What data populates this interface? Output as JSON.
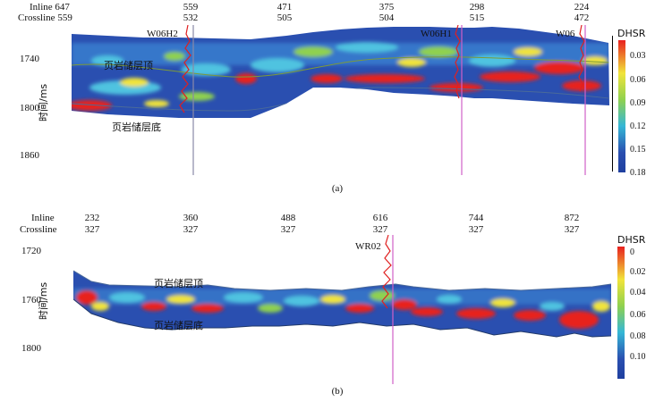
{
  "panel_a": {
    "caption": "(a)",
    "inline_label": "Inline",
    "crossline_label": "Crossline",
    "inline_first": "647",
    "crossline_first": "559",
    "inline_ticks": [
      "559",
      "471",
      "375",
      "298",
      "224"
    ],
    "crossline_ticks": [
      "532",
      "505",
      "504",
      "515",
      "472"
    ],
    "y_title": "时间/ms",
    "y_ticks": [
      "1740",
      "1800",
      "1860"
    ],
    "wells": [
      "W06H2",
      "W06H1",
      "W06"
    ],
    "horizon_top": "页岩储层顶",
    "horizon_bottom": "页岩储层底",
    "colorbar_title": "DHSR",
    "colorbar_ticks": [
      "0.03",
      "0.06",
      "0.09",
      "0.12",
      "0.15",
      "0.18"
    ]
  },
  "panel_b": {
    "caption": "(b)",
    "inline_label": "Inline",
    "crossline_label": "Crossline",
    "inline_ticks": [
      "232",
      "360",
      "488",
      "616",
      "744",
      "872"
    ],
    "crossline_ticks": [
      "327",
      "327",
      "327",
      "327",
      "327",
      "327"
    ],
    "y_title": "时间/ms",
    "y_ticks": [
      "1720",
      "1760",
      "1800"
    ],
    "wells": [
      "WR02"
    ],
    "horizon_top": "页岩储层顶",
    "horizon_bottom": "页岩储层底",
    "colorbar_title": "DHSR",
    "colorbar_ticks": [
      "0",
      "0.02",
      "0.04",
      "0.06",
      "0.08",
      "0.10"
    ]
  },
  "colors": {
    "low": "#1f3f9f",
    "mid": "#35b7d6",
    "green": "#8fd14f",
    "yellow": "#f2e53a",
    "high": "#e8201f",
    "well_trace": "#e02020",
    "well_line_a1": "#8a8aa8",
    "well_line": "#d060c8"
  }
}
